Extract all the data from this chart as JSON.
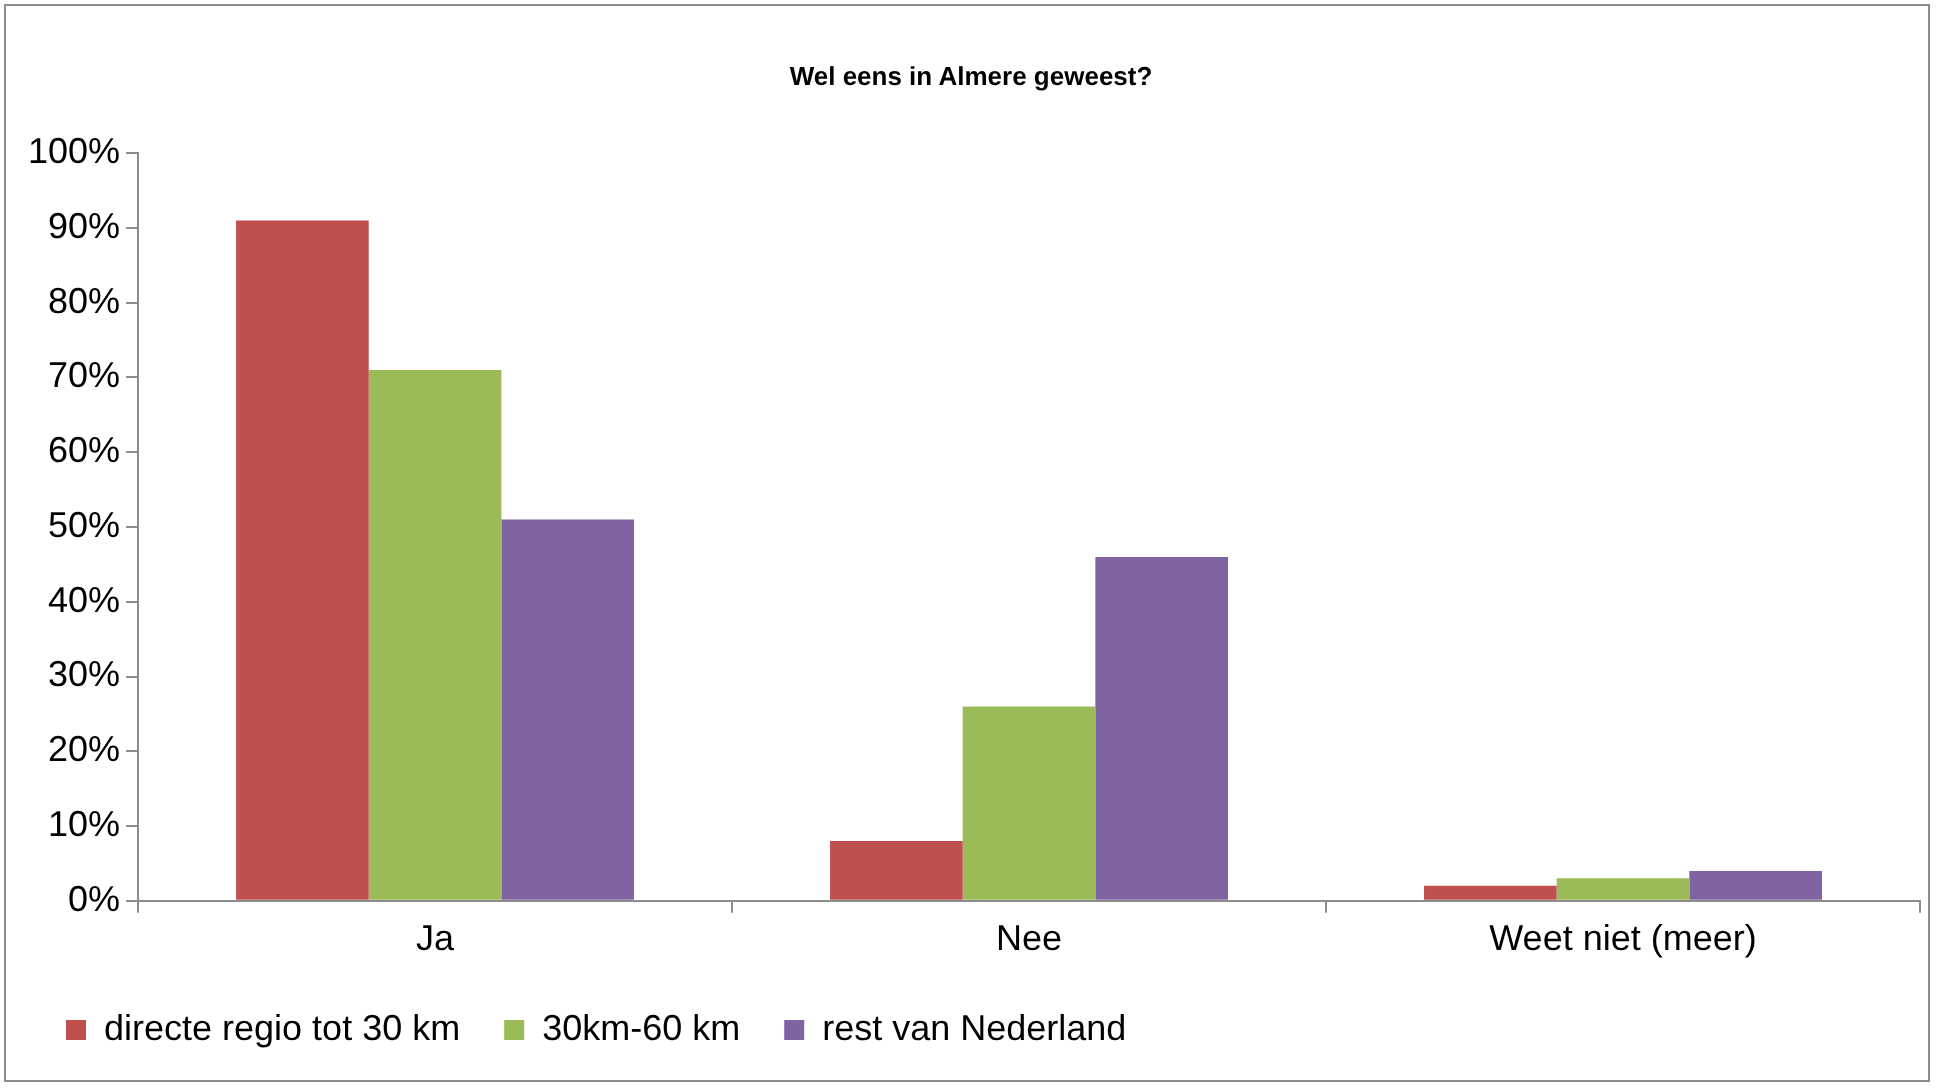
{
  "chart_data": {
    "type": "bar",
    "title": "Wel eens in Almere geweest?",
    "categories": [
      "Ja",
      "Nee",
      "Weet niet (meer)"
    ],
    "series": [
      {
        "name": "directe regio tot 30 km",
        "color": "#c0504d",
        "values": [
          91,
          8,
          2
        ]
      },
      {
        "name": "30km-60 km",
        "color": "#9bbb59",
        "values": [
          71,
          26,
          3
        ]
      },
      {
        "name": "rest van Nederland",
        "color": "#8064a2",
        "values": [
          51,
          46,
          4
        ]
      }
    ],
    "ylim": [
      0,
      100
    ],
    "yticks": [
      {
        "value": 0,
        "label": "0%"
      },
      {
        "value": 10,
        "label": "10%"
      },
      {
        "value": 20,
        "label": "20%"
      },
      {
        "value": 30,
        "label": "30%"
      },
      {
        "value": 40,
        "label": "40%"
      },
      {
        "value": 50,
        "label": "50%"
      },
      {
        "value": 60,
        "label": "60%"
      },
      {
        "value": 70,
        "label": "70%"
      },
      {
        "value": 80,
        "label": "80%"
      },
      {
        "value": 90,
        "label": "90%"
      },
      {
        "value": 100,
        "label": "100%"
      }
    ],
    "grid": false,
    "legend": "bottom"
  }
}
